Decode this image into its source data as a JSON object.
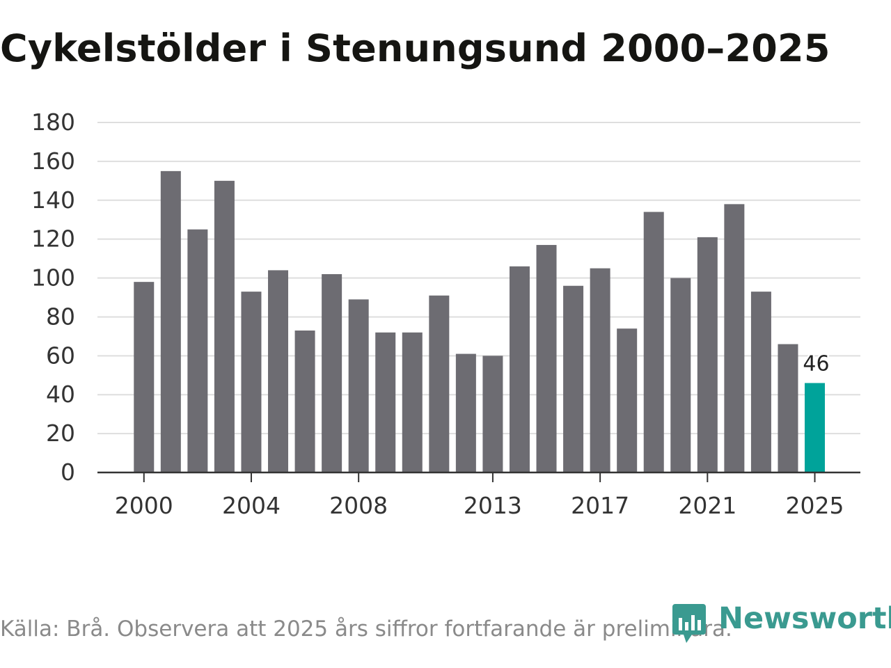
{
  "chart_data": {
    "type": "bar",
    "title": "Cykelstölder i Stenungsund 2000–2025",
    "xlabel": "",
    "ylabel": "",
    "ylim": [
      0,
      180
    ],
    "yticks": [
      "0",
      "20",
      "40",
      "60",
      "80",
      "100",
      "120",
      "140",
      "160",
      "180"
    ],
    "categories": [
      "2000",
      "2001",
      "2002",
      "2003",
      "2004",
      "2005",
      "2006",
      "2007",
      "2008",
      "2009",
      "2010",
      "2011",
      "2012",
      "2013",
      "2014",
      "2015",
      "2016",
      "2017",
      "2018",
      "2019",
      "2020",
      "2021",
      "2022",
      "2023",
      "2024",
      "2025"
    ],
    "values": [
      98,
      155,
      125,
      150,
      93,
      104,
      73,
      102,
      89,
      72,
      72,
      91,
      61,
      60,
      106,
      117,
      96,
      105,
      74,
      134,
      100,
      121,
      138,
      93,
      66,
      46
    ],
    "xticks_shown": [
      "2000",
      "2004",
      "2008",
      "2013",
      "2017",
      "2021",
      "2025"
    ],
    "highlight": {
      "category": "2025",
      "label": "46"
    },
    "grid": true,
    "colors": {
      "bar": "#6d6c72",
      "highlight": "#00a39a",
      "grid": "#dedede",
      "axis": "#333333"
    }
  },
  "source": "Källa: Brå. Observera att 2025 års siffror fortfarande är preliminära.",
  "logo": {
    "text": "Newsworthy",
    "color": "#3a9a90"
  }
}
